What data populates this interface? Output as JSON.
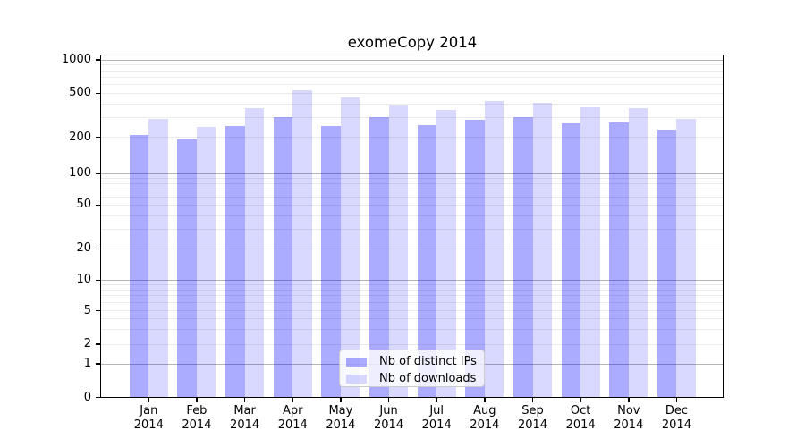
{
  "chart_data": {
    "type": "bar",
    "title": "exomeCopy 2014",
    "categories": [
      "Jan",
      "Feb",
      "Mar",
      "Apr",
      "May",
      "Jun",
      "Jul",
      "Aug",
      "Sep",
      "Oct",
      "Nov",
      "Dec"
    ],
    "x_tick_second_line": "2014",
    "series": [
      {
        "name": "Nb of distinct IPs",
        "color": "rgba(0,0,255,0.33)",
        "values": [
          211,
          191,
          253,
          305,
          253,
          305,
          259,
          287,
          305,
          268,
          273,
          235
        ]
      },
      {
        "name": "Nb of downloads",
        "color": "rgba(0,0,255,0.15)",
        "values": [
          295,
          247,
          367,
          531,
          458,
          386,
          352,
          426,
          412,
          374,
          369,
          295
        ]
      }
    ],
    "xlabel": "",
    "ylabel": "",
    "y_ticks": [
      0,
      1,
      2,
      5,
      10,
      20,
      50,
      100,
      200,
      500,
      1000
    ],
    "yscale": "log-with-zero-baseline",
    "ylim": [
      0,
      1100
    ],
    "grid": "horizontal major and minor",
    "legend_position": "lower center"
  },
  "colors": {
    "bar_dark": "rgba(0,0,255,0.33)",
    "bar_light": "rgba(0,0,255,0.15)",
    "grid_major": "#b5b5b5",
    "grid_minor": "#ebebeb",
    "background": "#ffffff",
    "text": "#000000",
    "legend_border": "#cccccc"
  }
}
